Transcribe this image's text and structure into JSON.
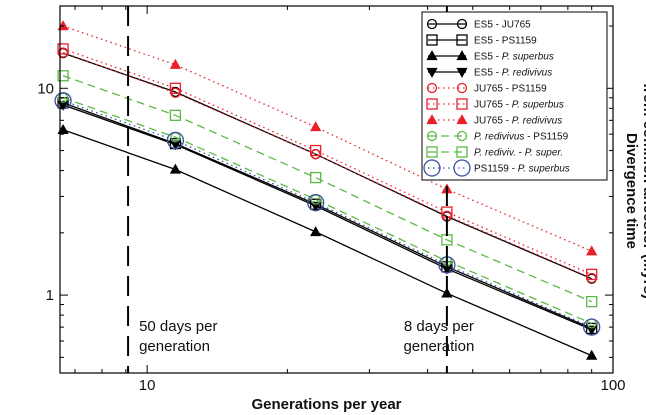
{
  "chart_data": {
    "type": "line",
    "xlabel": "Generations per year",
    "ylabel_lines": [
      "Divergence time",
      "from common ancestor (Myrs)"
    ],
    "xscale": "log",
    "yscale": "log",
    "xlim": [
      6.5,
      100
    ],
    "ylim": [
      0.42,
      25
    ],
    "x": [
      6.6,
      11.5,
      23,
      44,
      90
    ],
    "x_ticks": [
      {
        "value": 10,
        "label": "10"
      },
      {
        "value": 100,
        "label": "100"
      }
    ],
    "y_ticks": [
      {
        "value": 1,
        "label": "1"
      },
      {
        "value": 10,
        "label": "10"
      }
    ],
    "grid": false,
    "legend_position": "top-right",
    "annotations": [
      {
        "x": 9.1,
        "lines": [
          "50 days per",
          "generation"
        ]
      },
      {
        "x": 44,
        "lines": [
          "8 days per",
          "generation"
        ]
      }
    ],
    "series": [
      {
        "name": "ES5 - JU765",
        "legend": [
          "ES5 - JU765"
        ],
        "color": "#000000",
        "dash": "solid",
        "marker": "circle",
        "values": [
          14.8,
          9.6,
          4.8,
          2.4,
          1.2
        ]
      },
      {
        "name": "ES5 - PS1159",
        "legend": [
          "ES5 - PS1159"
        ],
        "color": "#000000",
        "dash": "solid",
        "marker": "square",
        "values": [
          8.5,
          5.4,
          2.75,
          1.37,
          0.69
        ]
      },
      {
        "name": "ES5 - P. superbus",
        "legend": [
          "ES5 - ",
          "P. superbus"
        ],
        "color": "#000000",
        "dash": "solid",
        "marker": "triangle-up",
        "values": [
          6.3,
          4.05,
          2.02,
          1.02,
          0.51
        ]
      },
      {
        "name": "ES5 - P. redivivus",
        "legend": [
          "ES5 - ",
          "P. redivivus"
        ],
        "color": "#000000",
        "dash": "solid",
        "marker": "triangle-down",
        "values": [
          8.3,
          5.35,
          2.7,
          1.34,
          0.68
        ]
      },
      {
        "name": "JU765 - PS1159",
        "legend": [
          "JU765 - PS1159"
        ],
        "color": "#e8202a",
        "dash": "dotted",
        "marker": "circle",
        "values": [
          14.9,
          9.5,
          4.8,
          2.42,
          1.21
        ]
      },
      {
        "name": "JU765 - P. superbus",
        "legend": [
          "JU765 - ",
          "P. superbus"
        ],
        "color": "#e8202a",
        "dash": "dotted",
        "marker": "square",
        "values": [
          15.5,
          10.0,
          5.0,
          2.52,
          1.26
        ]
      },
      {
        "name": "JU765 - P. redivivus",
        "legend": [
          "JU765 - ",
          "P. redivivus"
        ],
        "color": "#e8202a",
        "dash": "dotted",
        "marker": "triangle-up",
        "values": [
          20.0,
          13.0,
          6.5,
          3.25,
          1.63
        ]
      },
      {
        "name": "P. redivivus - PS1159",
        "legend": [
          "P. redivivus",
          " - PS1159"
        ],
        "color": "#5cb947",
        "dash": "dashed",
        "marker": "circle",
        "values": [
          9.0,
          5.8,
          2.9,
          1.46,
          0.73
        ]
      },
      {
        "name": "P. rediviv. - P. super.",
        "legend": [
          "P. rediviv.",
          " - ",
          "P. super."
        ],
        "color": "#5cb947",
        "dash": "dashed",
        "marker": "square",
        "values": [
          11.5,
          7.4,
          3.7,
          1.85,
          0.93
        ]
      },
      {
        "name": "PS1159 - P. superbus",
        "legend": [
          "PS1159 - ",
          "P. superbus"
        ],
        "color": "#3a4fa0",
        "dash": "dotted",
        "marker": "big-circle",
        "values": [
          8.7,
          5.6,
          2.8,
          1.4,
          0.7
        ]
      }
    ]
  }
}
